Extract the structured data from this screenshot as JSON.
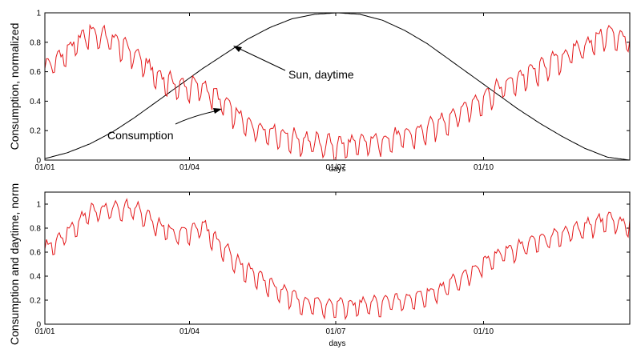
{
  "chart_data": [
    {
      "type": "line",
      "xlabel": "days",
      "ylabel": "Consumption, normalized",
      "x_ticks": [
        "01/01",
        "01/04",
        "01/07",
        "01/10"
      ],
      "x_tick_days": [
        0,
        90,
        181,
        273
      ],
      "xlim": [
        0,
        364
      ],
      "ylim": [
        0,
        1
      ],
      "y_ticks": [
        0,
        0.2,
        0.4,
        0.6,
        0.8,
        1
      ],
      "y_tick_labels": [
        "0",
        "0.2",
        "0.4",
        "0.6",
        "0.8",
        "1"
      ],
      "series": [
        {
          "name": "Sun, daytime",
          "color": "#000000",
          "x": [
            0,
            14,
            28,
            42,
            56,
            70,
            84,
            98,
            112,
            126,
            140,
            154,
            168,
            182,
            196,
            210,
            224,
            238,
            252,
            266,
            280,
            294,
            308,
            322,
            336,
            350,
            364
          ],
          "values": [
            0.01,
            0.05,
            0.11,
            0.19,
            0.29,
            0.4,
            0.51,
            0.62,
            0.72,
            0.82,
            0.9,
            0.96,
            0.99,
            1.0,
            0.99,
            0.95,
            0.88,
            0.79,
            0.68,
            0.57,
            0.46,
            0.35,
            0.25,
            0.16,
            0.08,
            0.02,
            0.0
          ]
        },
        {
          "name": "Consumption",
          "color": "#e41a1c",
          "x": [
            0,
            14,
            28,
            42,
            56,
            70,
            84,
            98,
            112,
            126,
            140,
            154,
            168,
            182,
            196,
            210,
            224,
            238,
            252,
            266,
            280,
            294,
            308,
            322,
            336,
            350,
            364
          ],
          "values": [
            0.62,
            0.74,
            0.87,
            0.82,
            0.72,
            0.57,
            0.5,
            0.5,
            0.38,
            0.24,
            0.2,
            0.15,
            0.12,
            0.1,
            0.11,
            0.14,
            0.16,
            0.21,
            0.29,
            0.38,
            0.47,
            0.55,
            0.62,
            0.7,
            0.78,
            0.86,
            0.82
          ],
          "amplitude": 0.1
        }
      ],
      "annotations": [
        {
          "text": "Sun, daytime",
          "points_to_day": 119,
          "points_to_value": 0.78
        },
        {
          "text": "Consumption",
          "points_to_day": 107,
          "points_to_value": 0.34
        }
      ]
    },
    {
      "type": "line",
      "xlabel": "days",
      "ylabel": "Consumption and daytime, norm",
      "x_ticks": [
        "01/01",
        "01/04",
        "01/07",
        "01/10"
      ],
      "x_tick_days": [
        0,
        90,
        181,
        273
      ],
      "xlim": [
        0,
        364
      ],
      "ylim": [
        0,
        1.1
      ],
      "y_ticks": [
        0,
        0.2,
        0.4,
        0.6,
        0.8,
        1
      ],
      "y_tick_labels": [
        "0",
        "0.2",
        "0.4",
        "0.6",
        "0.8",
        "1"
      ],
      "series": [
        {
          "name": "Consumption and daytime",
          "color": "#e41a1c",
          "x": [
            0,
            14,
            28,
            42,
            56,
            70,
            84,
            98,
            112,
            126,
            140,
            154,
            168,
            182,
            196,
            210,
            224,
            238,
            252,
            266,
            280,
            294,
            308,
            322,
            336,
            350,
            364
          ],
          "values": [
            0.62,
            0.77,
            0.95,
            0.96,
            0.97,
            0.82,
            0.75,
            0.82,
            0.62,
            0.45,
            0.33,
            0.22,
            0.17,
            0.15,
            0.16,
            0.18,
            0.2,
            0.25,
            0.33,
            0.45,
            0.56,
            0.64,
            0.7,
            0.75,
            0.8,
            0.88,
            0.82
          ],
          "amplitude": 0.1
        }
      ]
    }
  ]
}
